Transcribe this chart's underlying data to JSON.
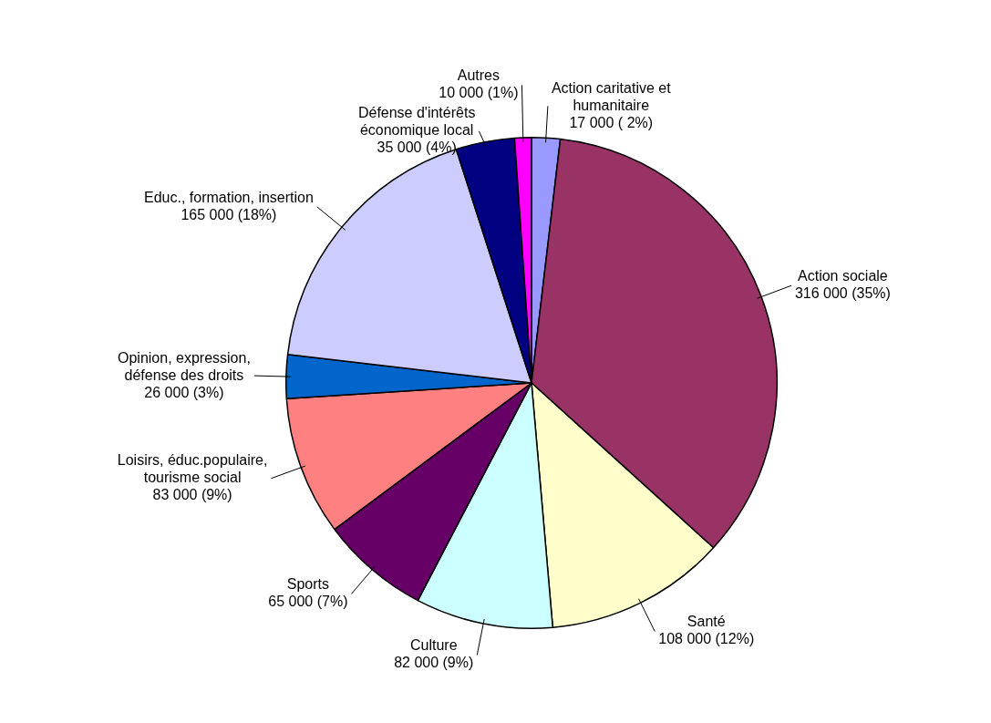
{
  "chart_data": {
    "type": "pie",
    "categories": [
      "Action caritative et\nhumanitaire",
      "Action sociale",
      "Santé",
      "Culture",
      "Sports",
      "Loisirs, éduc.populaire,\ntourisme social",
      "Opinion, expression,\ndéfense des droits",
      "Educ., formation, insertion",
      "Défense d'intérêts\néconomique local",
      "Autres"
    ],
    "values": [
      17000,
      316000,
      108000,
      82000,
      65000,
      83000,
      26000,
      165000,
      35000,
      10000
    ],
    "value_labels": [
      "17 000 ( 2%)",
      "316 000 (35%)",
      "108 000 (12%)",
      "82 000 (9%)",
      "65 000 (7%)",
      "83 000 (9%)",
      "26 000 (3%)",
      "165 000 (18%)",
      "35 000 (4%)",
      "10 000 (1%)"
    ],
    "colors": [
      "#9999ff",
      "#993366",
      "#ffffcc",
      "#ccffff",
      "#660066",
      "#ff8080",
      "#0066cc",
      "#ccccff",
      "#000080",
      "#ff00ff"
    ]
  }
}
